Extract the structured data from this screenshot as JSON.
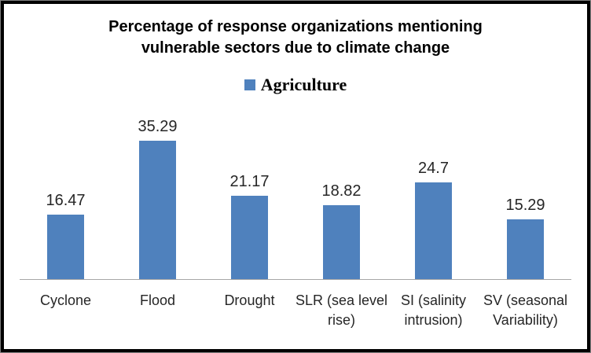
{
  "window": {
    "background": "#FFFFFF",
    "frame_border_color": "#000000",
    "frame_outline_color": "#808080"
  },
  "chart_data": {
    "type": "bar",
    "title": "Percentage of response organizations mentioning vulnerable sectors due to climate change",
    "title_lines": [
      "Percentage of response organizations mentioning",
      "vulnerable sectors due to climate change"
    ],
    "legend": {
      "label": "Agriculture",
      "position": "top",
      "marker_color": "#4F81BD"
    },
    "categories": [
      "Cyclone",
      "Flood",
      "Drought",
      "SLR (sea level rise)",
      "SI (salinity intrusion)",
      "SV (seasonal Variability)"
    ],
    "category_lines": [
      [
        "Cyclone"
      ],
      [
        "Flood"
      ],
      [
        "Drought"
      ],
      [
        "SLR (sea level",
        "rise)"
      ],
      [
        "SI (salinity",
        "intrusion)"
      ],
      [
        "SV (seasonal",
        "Variability)"
      ]
    ],
    "series": [
      {
        "name": "Agriculture",
        "color": "#4F81BD",
        "values": [
          16.47,
          35.29,
          21.17,
          18.82,
          24.7,
          15.29
        ]
      }
    ],
    "data_labels": [
      "16.47",
      "35.29",
      "21.17",
      "18.82",
      "24.7",
      "15.29"
    ],
    "xlabel": "",
    "ylabel": "",
    "ylim": [
      0,
      40
    ],
    "grid": false,
    "y_axis_visible": false,
    "axis_line_color": "#A6A6A6",
    "label_text_color": "#262626"
  }
}
